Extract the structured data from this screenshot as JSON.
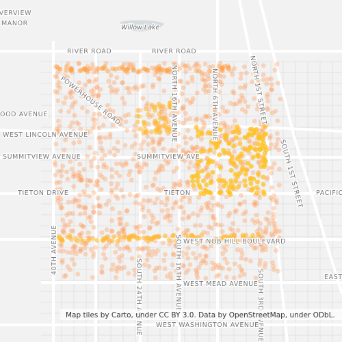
{
  "labels": [
    "RIVERVIEW",
    "MANOR",
    "Willow Lake",
    "RIVER ROAD",
    "RIVER ROAD",
    "POWERHOUSE ROAD",
    "WOOD AVENUE",
    "WEST LINCOLN AVENUE",
    "SUMMITVIEW AVENUE",
    "SUMMITVIEW AVE",
    "TIETON DRIVE",
    "TIETON",
    "NORTH 16TH AVENUE",
    "NORTH 6TH AVENUE",
    "NORTH 1ST STREET",
    "SOUTH 1ST STREET",
    "PACIFIC",
    "40TH AVENUE",
    "SOUTH 24TH AVENUE",
    "SOUTH 16TH AVENUE",
    "WEST NOB HILL BOULEVARD",
    "WEST MEAD AVENUE",
    "SOUTH 3RD AVENUE",
    "EAST",
    "WEST WASHINGTON AVENUE"
  ],
  "attribution": "Map tiles by Carto, under CC BY 3.0. Data by OpenStreetMap, under ODbL."
}
